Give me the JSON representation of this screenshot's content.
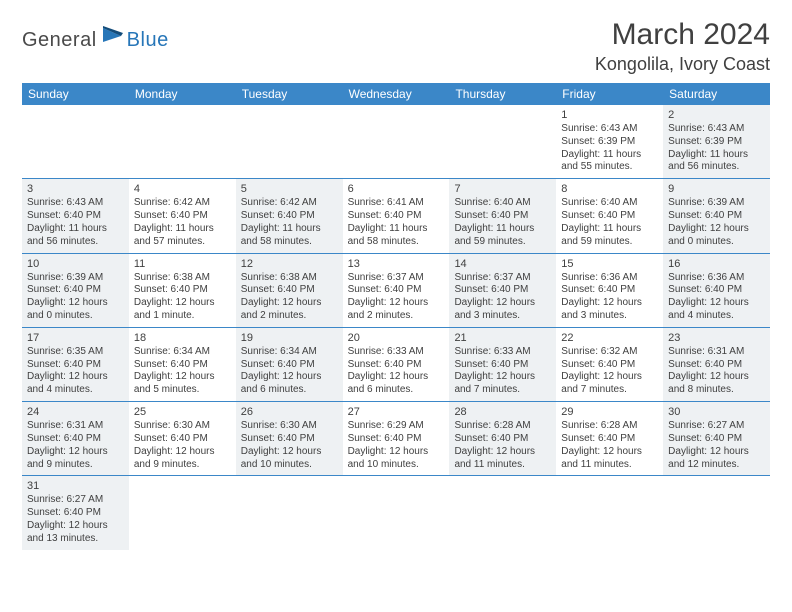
{
  "logo": {
    "general": "General",
    "blue": "Blue"
  },
  "title": "March 2024",
  "location": "Kongolila, Ivory Coast",
  "colors": {
    "header_bg": "#3b87c8",
    "header_text": "#ffffff",
    "shaded_bg": "#eef1f3",
    "row_border": "#3b87c8",
    "text": "#404040",
    "logo_gray": "#4a4a4a",
    "logo_blue": "#2776b8"
  },
  "dow": [
    "Sunday",
    "Monday",
    "Tuesday",
    "Wednesday",
    "Thursday",
    "Friday",
    "Saturday"
  ],
  "weeks": [
    [
      {
        "empty": true,
        "shaded": true
      },
      {
        "empty": true
      },
      {
        "empty": true,
        "shaded": true
      },
      {
        "empty": true
      },
      {
        "empty": true,
        "shaded": true
      },
      {
        "num": "1",
        "shaded": false,
        "sunrise": "Sunrise: 6:43 AM",
        "sunset": "Sunset: 6:39 PM",
        "daylight1": "Daylight: 11 hours",
        "daylight2": "and 55 minutes."
      },
      {
        "num": "2",
        "shaded": true,
        "sunrise": "Sunrise: 6:43 AM",
        "sunset": "Sunset: 6:39 PM",
        "daylight1": "Daylight: 11 hours",
        "daylight2": "and 56 minutes."
      }
    ],
    [
      {
        "num": "3",
        "shaded": true,
        "sunrise": "Sunrise: 6:43 AM",
        "sunset": "Sunset: 6:40 PM",
        "daylight1": "Daylight: 11 hours",
        "daylight2": "and 56 minutes."
      },
      {
        "num": "4",
        "shaded": false,
        "sunrise": "Sunrise: 6:42 AM",
        "sunset": "Sunset: 6:40 PM",
        "daylight1": "Daylight: 11 hours",
        "daylight2": "and 57 minutes."
      },
      {
        "num": "5",
        "shaded": true,
        "sunrise": "Sunrise: 6:42 AM",
        "sunset": "Sunset: 6:40 PM",
        "daylight1": "Daylight: 11 hours",
        "daylight2": "and 58 minutes."
      },
      {
        "num": "6",
        "shaded": false,
        "sunrise": "Sunrise: 6:41 AM",
        "sunset": "Sunset: 6:40 PM",
        "daylight1": "Daylight: 11 hours",
        "daylight2": "and 58 minutes."
      },
      {
        "num": "7",
        "shaded": true,
        "sunrise": "Sunrise: 6:40 AM",
        "sunset": "Sunset: 6:40 PM",
        "daylight1": "Daylight: 11 hours",
        "daylight2": "and 59 minutes."
      },
      {
        "num": "8",
        "shaded": false,
        "sunrise": "Sunrise: 6:40 AM",
        "sunset": "Sunset: 6:40 PM",
        "daylight1": "Daylight: 11 hours",
        "daylight2": "and 59 minutes."
      },
      {
        "num": "9",
        "shaded": true,
        "sunrise": "Sunrise: 6:39 AM",
        "sunset": "Sunset: 6:40 PM",
        "daylight1": "Daylight: 12 hours",
        "daylight2": "and 0 minutes."
      }
    ],
    [
      {
        "num": "10",
        "shaded": true,
        "sunrise": "Sunrise: 6:39 AM",
        "sunset": "Sunset: 6:40 PM",
        "daylight1": "Daylight: 12 hours",
        "daylight2": "and 0 minutes."
      },
      {
        "num": "11",
        "shaded": false,
        "sunrise": "Sunrise: 6:38 AM",
        "sunset": "Sunset: 6:40 PM",
        "daylight1": "Daylight: 12 hours",
        "daylight2": "and 1 minute."
      },
      {
        "num": "12",
        "shaded": true,
        "sunrise": "Sunrise: 6:38 AM",
        "sunset": "Sunset: 6:40 PM",
        "daylight1": "Daylight: 12 hours",
        "daylight2": "and 2 minutes."
      },
      {
        "num": "13",
        "shaded": false,
        "sunrise": "Sunrise: 6:37 AM",
        "sunset": "Sunset: 6:40 PM",
        "daylight1": "Daylight: 12 hours",
        "daylight2": "and 2 minutes."
      },
      {
        "num": "14",
        "shaded": true,
        "sunrise": "Sunrise: 6:37 AM",
        "sunset": "Sunset: 6:40 PM",
        "daylight1": "Daylight: 12 hours",
        "daylight2": "and 3 minutes."
      },
      {
        "num": "15",
        "shaded": false,
        "sunrise": "Sunrise: 6:36 AM",
        "sunset": "Sunset: 6:40 PM",
        "daylight1": "Daylight: 12 hours",
        "daylight2": "and 3 minutes."
      },
      {
        "num": "16",
        "shaded": true,
        "sunrise": "Sunrise: 6:36 AM",
        "sunset": "Sunset: 6:40 PM",
        "daylight1": "Daylight: 12 hours",
        "daylight2": "and 4 minutes."
      }
    ],
    [
      {
        "num": "17",
        "shaded": true,
        "sunrise": "Sunrise: 6:35 AM",
        "sunset": "Sunset: 6:40 PM",
        "daylight1": "Daylight: 12 hours",
        "daylight2": "and 4 minutes."
      },
      {
        "num": "18",
        "shaded": false,
        "sunrise": "Sunrise: 6:34 AM",
        "sunset": "Sunset: 6:40 PM",
        "daylight1": "Daylight: 12 hours",
        "daylight2": "and 5 minutes."
      },
      {
        "num": "19",
        "shaded": true,
        "sunrise": "Sunrise: 6:34 AM",
        "sunset": "Sunset: 6:40 PM",
        "daylight1": "Daylight: 12 hours",
        "daylight2": "and 6 minutes."
      },
      {
        "num": "20",
        "shaded": false,
        "sunrise": "Sunrise: 6:33 AM",
        "sunset": "Sunset: 6:40 PM",
        "daylight1": "Daylight: 12 hours",
        "daylight2": "and 6 minutes."
      },
      {
        "num": "21",
        "shaded": true,
        "sunrise": "Sunrise: 6:33 AM",
        "sunset": "Sunset: 6:40 PM",
        "daylight1": "Daylight: 12 hours",
        "daylight2": "and 7 minutes."
      },
      {
        "num": "22",
        "shaded": false,
        "sunrise": "Sunrise: 6:32 AM",
        "sunset": "Sunset: 6:40 PM",
        "daylight1": "Daylight: 12 hours",
        "daylight2": "and 7 minutes."
      },
      {
        "num": "23",
        "shaded": true,
        "sunrise": "Sunrise: 6:31 AM",
        "sunset": "Sunset: 6:40 PM",
        "daylight1": "Daylight: 12 hours",
        "daylight2": "and 8 minutes."
      }
    ],
    [
      {
        "num": "24",
        "shaded": true,
        "sunrise": "Sunrise: 6:31 AM",
        "sunset": "Sunset: 6:40 PM",
        "daylight1": "Daylight: 12 hours",
        "daylight2": "and 9 minutes."
      },
      {
        "num": "25",
        "shaded": false,
        "sunrise": "Sunrise: 6:30 AM",
        "sunset": "Sunset: 6:40 PM",
        "daylight1": "Daylight: 12 hours",
        "daylight2": "and 9 minutes."
      },
      {
        "num": "26",
        "shaded": true,
        "sunrise": "Sunrise: 6:30 AM",
        "sunset": "Sunset: 6:40 PM",
        "daylight1": "Daylight: 12 hours",
        "daylight2": "and 10 minutes."
      },
      {
        "num": "27",
        "shaded": false,
        "sunrise": "Sunrise: 6:29 AM",
        "sunset": "Sunset: 6:40 PM",
        "daylight1": "Daylight: 12 hours",
        "daylight2": "and 10 minutes."
      },
      {
        "num": "28",
        "shaded": true,
        "sunrise": "Sunrise: 6:28 AM",
        "sunset": "Sunset: 6:40 PM",
        "daylight1": "Daylight: 12 hours",
        "daylight2": "and 11 minutes."
      },
      {
        "num": "29",
        "shaded": false,
        "sunrise": "Sunrise: 6:28 AM",
        "sunset": "Sunset: 6:40 PM",
        "daylight1": "Daylight: 12 hours",
        "daylight2": "and 11 minutes."
      },
      {
        "num": "30",
        "shaded": true,
        "sunrise": "Sunrise: 6:27 AM",
        "sunset": "Sunset: 6:40 PM",
        "daylight1": "Daylight: 12 hours",
        "daylight2": "and 12 minutes."
      }
    ],
    [
      {
        "num": "31",
        "shaded": true,
        "sunrise": "Sunrise: 6:27 AM",
        "sunset": "Sunset: 6:40 PM",
        "daylight1": "Daylight: 12 hours",
        "daylight2": "and 13 minutes."
      },
      {
        "empty": true
      },
      {
        "empty": true,
        "shaded": true
      },
      {
        "empty": true
      },
      {
        "empty": true,
        "shaded": true
      },
      {
        "empty": true
      },
      {
        "empty": true,
        "shaded": true
      }
    ]
  ]
}
